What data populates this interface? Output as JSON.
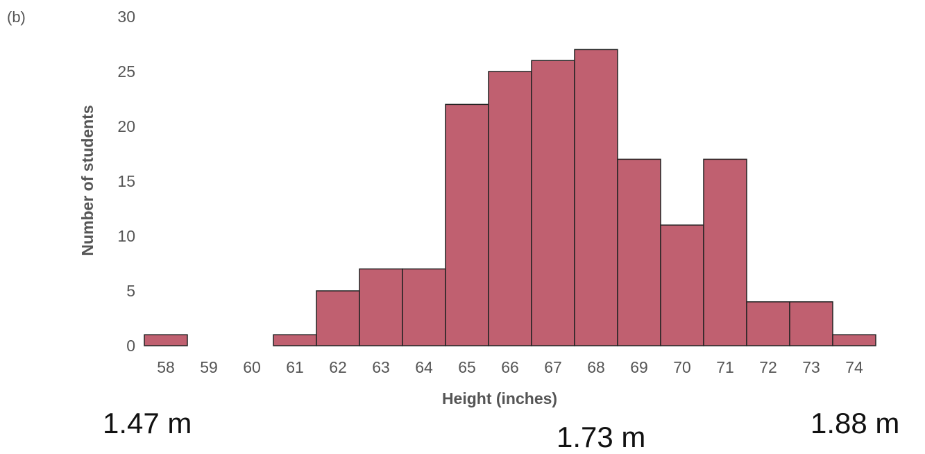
{
  "panel_label": "(b)",
  "chart_data": {
    "type": "bar",
    "xlabel": "Height (inches)",
    "ylabel": "Number of students",
    "ylim": [
      0,
      30
    ],
    "yticks": [
      "0",
      "5",
      "10",
      "15",
      "20",
      "25",
      "30"
    ],
    "categories": [
      "58",
      "59",
      "60",
      "61",
      "62",
      "63",
      "64",
      "65",
      "66",
      "67",
      "68",
      "69",
      "70",
      "71",
      "72",
      "73",
      "74"
    ],
    "values": [
      1,
      0,
      0,
      1,
      5,
      7,
      7,
      22,
      25,
      26,
      27,
      17,
      11,
      17,
      4,
      4,
      1
    ],
    "bar_color": "#c06070",
    "edge_color": "#222222",
    "grid": false
  },
  "annotations": {
    "left": "1.47 m",
    "middle": "1.73 m",
    "right": "1.88 m"
  }
}
